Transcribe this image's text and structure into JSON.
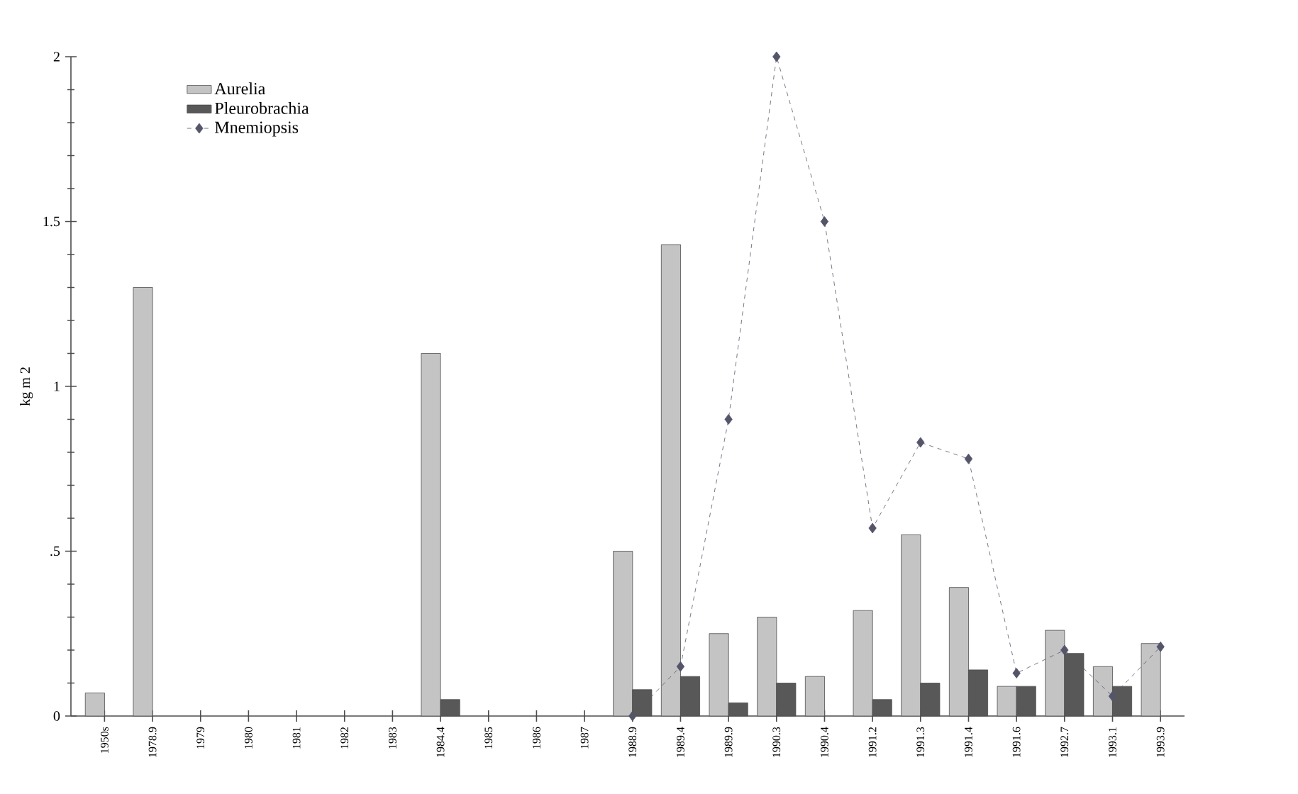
{
  "chart_data": {
    "type": "bar",
    "ylabel": "kg m 2",
    "categories": [
      "1950s",
      "1978.9",
      "1979",
      "1980",
      "1981",
      "1982",
      "1983",
      "1984.4",
      "1985",
      "1986",
      "1987",
      "1988.9",
      "1989.4",
      "1989.9",
      "1990.3",
      "1990.4",
      "1991.2",
      "1991.3",
      "1991.4",
      "1991.6",
      "1992.7",
      "1993.1",
      "1993.9"
    ],
    "series": [
      {
        "name": "Aurelia",
        "color": "#c4c4c4",
        "values": [
          0.07,
          1.3,
          null,
          null,
          null,
          null,
          null,
          1.1,
          null,
          null,
          null,
          0.5,
          1.43,
          0.25,
          0.3,
          0.12,
          0.32,
          0.55,
          0.39,
          0.09,
          0.26,
          0.15,
          0.22
        ]
      },
      {
        "name": "Pleurobrachia",
        "color": "#585858",
        "values": [
          null,
          null,
          null,
          null,
          null,
          null,
          null,
          0.05,
          null,
          null,
          null,
          0.08,
          0.12,
          0.04,
          0.1,
          null,
          0.05,
          0.1,
          0.14,
          0.09,
          0.19,
          0.09,
          null
        ]
      },
      {
        "name": "Mnemiopsis",
        "type": "line",
        "color": "#55556a",
        "line_style": "dashed",
        "marker": "diamond",
        "values": [
          null,
          null,
          null,
          null,
          null,
          null,
          null,
          null,
          null,
          null,
          null,
          0.0,
          0.15,
          0.9,
          2.0,
          1.5,
          0.57,
          0.83,
          0.78,
          0.13,
          0.2,
          0.06,
          0.21
        ]
      }
    ],
    "ylim": [
      0,
      2
    ],
    "yticks": [
      0,
      {
        "value": 0.5,
        "label": ".5"
      },
      1,
      1.5,
      2
    ],
    "legend": "top left",
    "grid": false
  }
}
